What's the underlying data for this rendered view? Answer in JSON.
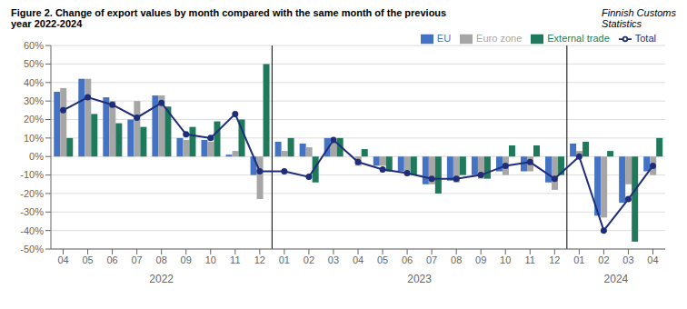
{
  "chart_data": {
    "type": "bar",
    "title": "Figure 2. Change of export values by month compared with the same month of the previous\nyear 2022-2024",
    "subtitle": "Finnish Customs\nStatistics",
    "categories": [
      "04",
      "05",
      "06",
      "07",
      "08",
      "09",
      "10",
      "11",
      "12",
      "01",
      "02",
      "03",
      "04",
      "05",
      "06",
      "07",
      "08",
      "09",
      "10",
      "11",
      "12",
      "01",
      "02",
      "03",
      "04"
    ],
    "annotations": [
      "2022",
      "2023",
      "2024"
    ],
    "series": [
      {
        "name": "EU",
        "color": "#4472C4",
        "values": [
          35,
          42,
          32,
          20,
          33,
          10,
          9,
          1,
          -10,
          8,
          7,
          10,
          0,
          -5,
          -8,
          -15,
          -13,
          -10,
          -8,
          -8,
          -14,
          7,
          -32,
          -25,
          -8
        ]
      },
      {
        "name": "Euro zone",
        "color": "#A6A6A6",
        "values": [
          37,
          42,
          30,
          30,
          33,
          9,
          8,
          3,
          -23,
          3,
          5,
          8,
          -5,
          -5,
          -8,
          -15,
          -14,
          -12,
          -10,
          -8,
          -18,
          3,
          -33,
          -15,
          -10
        ]
      },
      {
        "name": "External trade",
        "color": "#1F7A5C",
        "values": [
          10,
          23,
          18,
          16,
          27,
          16,
          19,
          20,
          50,
          10,
          -14,
          10,
          4,
          -8,
          -10,
          -20,
          -10,
          -12,
          6,
          6,
          -10,
          8,
          3,
          -46,
          10
        ]
      },
      {
        "name": "Total",
        "type": "line",
        "color": "#1F2D7A",
        "marker": "circle",
        "values": [
          25,
          32,
          28,
          21,
          29,
          12,
          10,
          23,
          -8,
          -8,
          -11,
          9,
          -3,
          -7,
          -9,
          -12,
          -12,
          -10,
          -5,
          -3,
          -12,
          0,
          -40,
          -23,
          -5
        ]
      }
    ],
    "ylim": [
      -50,
      60
    ],
    "yticks": [
      {
        "value": -50,
        "label": "-50%"
      },
      {
        "value": -40,
        "label": "-40%"
      },
      {
        "value": -30,
        "label": "-30%"
      },
      {
        "value": -20,
        "label": "-20%"
      },
      {
        "value": -10,
        "label": "-10%"
      },
      {
        "value": 0,
        "label": "0%"
      },
      {
        "value": 10,
        "label": "10%"
      },
      {
        "value": 20,
        "label": "20%"
      },
      {
        "value": 30,
        "label": "30%"
      },
      {
        "value": 40,
        "label": "40%"
      },
      {
        "value": 50,
        "label": "50%"
      },
      {
        "value": 60,
        "label": "60%"
      }
    ],
    "grid": true,
    "legend": "upper right"
  }
}
